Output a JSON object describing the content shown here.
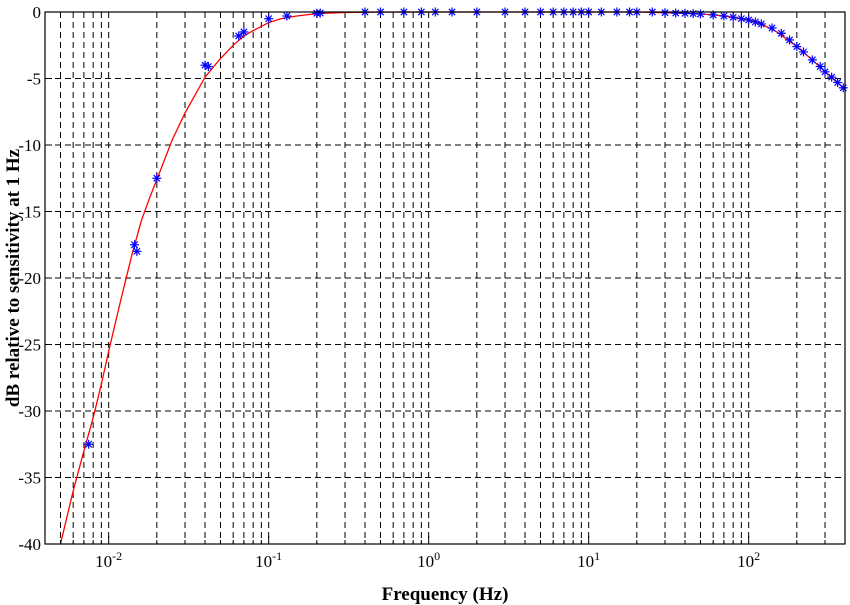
{
  "chart_data": {
    "type": "line",
    "title": "",
    "xlabel": "Frequency (Hz)",
    "ylabel": "dB relative to sensitivity at 1 Hz",
    "x_scale": "log",
    "xlim": [
      0.004,
      400
    ],
    "ylim": [
      -40,
      0
    ],
    "grid": true,
    "legend": "none",
    "x_ticks": [
      {
        "value": 0.01,
        "base": "10",
        "exp": "-2"
      },
      {
        "value": 0.1,
        "base": "10",
        "exp": "-1"
      },
      {
        "value": 1,
        "base": "10",
        "exp": "0"
      },
      {
        "value": 10,
        "base": "10",
        "exp": "1"
      },
      {
        "value": 100,
        "base": "10",
        "exp": "2"
      }
    ],
    "y_ticks": [
      0,
      -5,
      -10,
      -15,
      -20,
      -25,
      -30,
      -35,
      -40
    ],
    "series": [
      {
        "kind": "fit",
        "color": "#ff0000",
        "x": [
          0.005,
          0.006,
          0.007,
          0.008,
          0.009,
          0.01,
          0.012,
          0.014,
          0.016,
          0.018,
          0.02,
          0.025,
          0.03,
          0.04,
          0.05,
          0.06,
          0.07,
          0.08,
          0.1,
          0.12,
          0.15,
          0.2,
          0.3,
          0.5,
          1,
          2,
          5,
          10,
          20,
          30,
          40,
          50,
          60,
          70,
          80,
          100,
          120,
          150,
          200,
          250,
          300,
          350,
          400
        ],
        "y": [
          -40,
          -36,
          -33,
          -30.5,
          -28,
          -25.5,
          -21.5,
          -18.2,
          -15.7,
          -14,
          -12.6,
          -9.6,
          -7.6,
          -4.9,
          -3.5,
          -2.5,
          -1.8,
          -1.4,
          -0.8,
          -0.5,
          -0.3,
          -0.12,
          -0.04,
          -0.01,
          0,
          0,
          0,
          0,
          0,
          -0.05,
          -0.1,
          -0.15,
          -0.22,
          -0.3,
          -0.4,
          -0.6,
          -0.9,
          -1.5,
          -2.6,
          -3.6,
          -4.5,
          -5.2,
          -5.8
        ]
      },
      {
        "kind": "measured",
        "color": "#0000ff",
        "marker": "*",
        "x": [
          0.0075,
          0.0145,
          0.015,
          0.02,
          0.04,
          0.042,
          0.065,
          0.07,
          0.1,
          0.13,
          0.2,
          0.21,
          0.4,
          0.5,
          0.7,
          0.9,
          1.1,
          1.4,
          2,
          3,
          4,
          5,
          6,
          7,
          8,
          9,
          10,
          12,
          15,
          18,
          20,
          25,
          30,
          35,
          40,
          45,
          50,
          60,
          70,
          80,
          90,
          100,
          110,
          120,
          140,
          160,
          180,
          200,
          220,
          250,
          280,
          300,
          330,
          360,
          390
        ],
        "y": [
          -32.5,
          -17.5,
          -18,
          -12.5,
          -4,
          -4.1,
          -1.8,
          -1.5,
          -0.5,
          -0.3,
          -0.1,
          -0.08,
          0,
          0,
          0,
          0,
          0,
          0,
          0,
          0,
          0,
          0,
          0,
          0,
          0,
          0,
          0,
          0,
          0,
          0,
          0,
          0,
          -0.05,
          -0.08,
          -0.1,
          -0.12,
          -0.15,
          -0.22,
          -0.3,
          -0.4,
          -0.5,
          -0.6,
          -0.75,
          -0.9,
          -1.2,
          -1.6,
          -2.1,
          -2.6,
          -3.0,
          -3.6,
          -4.1,
          -4.5,
          -4.9,
          -5.3,
          -5.7
        ]
      }
    ]
  }
}
